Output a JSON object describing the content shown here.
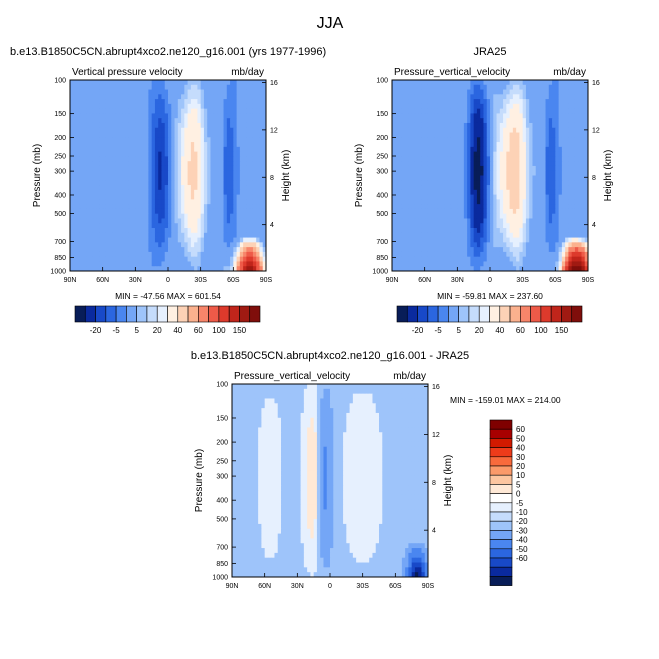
{
  "figure": {
    "title": "JJA"
  },
  "colors": {
    "model_obs_bar": [
      "#081d58",
      "#0a2a9e",
      "#1849c8",
      "#2b66e0",
      "#4a86f0",
      "#74a6f6",
      "#9ec4fa",
      "#c5dcfc",
      "#e6f0fe",
      "#fff0e2",
      "#fdd2b6",
      "#fbb18e",
      "#f7856a",
      "#ee5a48",
      "#dd3a2c",
      "#c0251b",
      "#a01a12",
      "#7f0e0b"
    ],
    "diff_bar": [
      "#7f0000",
      "#a80000",
      "#d21a00",
      "#ee3b1a",
      "#f86a3c",
      "#fb9a6a",
      "#fdc6a0",
      "#ffe9d6",
      "#ffffff",
      "#e6f0fe",
      "#c5dcfc",
      "#9ec4fa",
      "#74a6f6",
      "#4a86f0",
      "#2b66e0",
      "#1849c8",
      "#0a2a9e",
      "#081d58"
    ]
  },
  "chart_data": [
    {
      "type": "heatmap",
      "panel": "model",
      "case_title": "b.e13.B1850C5CN.abrupt4xco2.ne120_g16.001 (yrs 1977-1996)",
      "left_title": "Vertical pressure velocity",
      "right_title": "mb/day",
      "xlabel": "",
      "ylabel": "Pressure (mb)",
      "y2label": "Height (km)",
      "x_ticks": [
        "90N",
        "60N",
        "30N",
        "0",
        "30S",
        "60S",
        "90S"
      ],
      "y_ticks": [
        "100",
        "150",
        "200",
        "250",
        "300",
        "400",
        "500",
        "700",
        "850",
        "1000"
      ],
      "y2_ticks": [
        "16",
        "12",
        "8",
        "4"
      ],
      "min_max_text": "MIN = -47.56   MAX = 601.54",
      "colorbar_labels": [
        "-20",
        "-5",
        "5",
        "20",
        "40",
        "60",
        "100",
        "150"
      ],
      "features": [
        {
          "lat": 5,
          "p_top": 120,
          "p_bot": 900,
          "omega": -40
        },
        {
          "lat": -20,
          "p_top": 130,
          "p_bot": 900,
          "omega": 30
        },
        {
          "lat": -75,
          "p_top": 650,
          "p_bot": 1000,
          "omega": 150
        }
      ]
    },
    {
      "type": "heatmap",
      "panel": "obs",
      "case_title": "JRA25",
      "left_title": "Pressure_vertical_velocity",
      "right_title": "mb/day",
      "xlabel": "",
      "ylabel": "Pressure (mb)",
      "y2label": "Height (km)",
      "x_ticks": [
        "90N",
        "60N",
        "30N",
        "0",
        "30S",
        "60S",
        "90S"
      ],
      "y_ticks": [
        "100",
        "150",
        "200",
        "250",
        "300",
        "400",
        "500",
        "700",
        "850",
        "1000"
      ],
      "y2_ticks": [
        "16",
        "12",
        "8",
        "4"
      ],
      "min_max_text": "MIN = -59.81   MAX = 237.60",
      "colorbar_labels": [
        "-20",
        "-5",
        "5",
        "20",
        "40",
        "60",
        "100",
        "150"
      ],
      "features": [
        {
          "lat": 10,
          "p_top": 110,
          "p_bot": 900,
          "omega": -55
        },
        {
          "lat": -20,
          "p_top": 130,
          "p_bot": 900,
          "omega": 35
        },
        {
          "lat": -80,
          "p_top": 650,
          "p_bot": 1000,
          "omega": 200
        }
      ]
    },
    {
      "type": "heatmap",
      "panel": "difference",
      "case_title": "b.e13.B1850C5CN.abrupt4xco2.ne120_g16.001 - JRA25",
      "left_title": "Pressure_vertical_velocity",
      "right_title": "mb/day",
      "xlabel": "",
      "ylabel": "Pressure (mb)",
      "y2label": "Height (km)",
      "x_ticks": [
        "90N",
        "60N",
        "30N",
        "0",
        "30S",
        "60S",
        "90S"
      ],
      "y_ticks": [
        "100",
        "150",
        "200",
        "250",
        "300",
        "400",
        "500",
        "700",
        "850",
        "1000"
      ],
      "y2_ticks": [
        "16",
        "12",
        "8",
        "4"
      ],
      "min_max_text": "MIN = -159.01   MAX = 214.00",
      "colorbar_labels": [
        "60",
        "50",
        "40",
        "30",
        "20",
        "10",
        "5",
        "0",
        "-5",
        "-10",
        "-20",
        "-30",
        "-40",
        "-50",
        "-60"
      ],
      "features": [
        {
          "lat": 15,
          "p_top": 200,
          "p_bot": 950,
          "omega": 12
        },
        {
          "lat": 5,
          "p_top": 150,
          "p_bot": 600,
          "omega": -15
        },
        {
          "lat": -80,
          "p_top": 650,
          "p_bot": 1000,
          "omega": -60
        }
      ]
    }
  ]
}
